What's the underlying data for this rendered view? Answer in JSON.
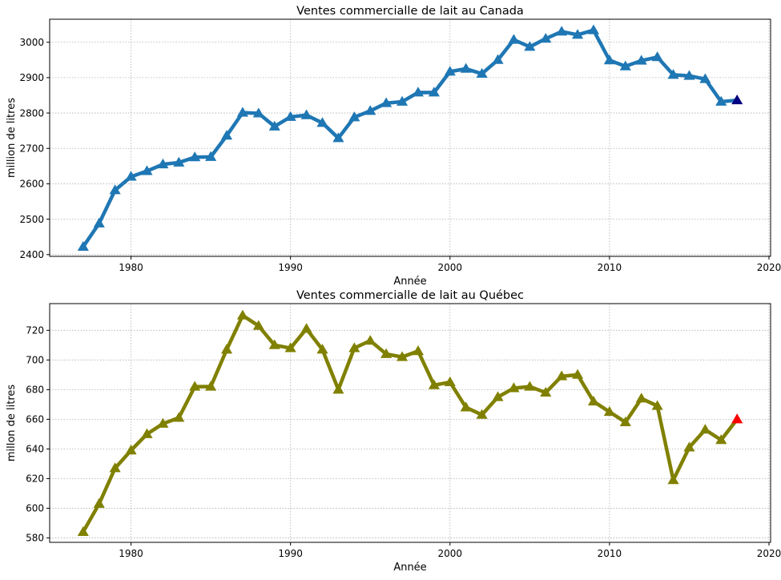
{
  "chart_data": [
    {
      "type": "line",
      "title": "Ventes commercialle de lait au Canada",
      "xlabel": "Année",
      "ylabel": "million de litres",
      "xlim": [
        1974.9,
        2020.1
      ],
      "ylim": [
        2395,
        3065
      ],
      "xticks": [
        1980,
        1990,
        2000,
        2010,
        2020
      ],
      "yticks": [
        2400,
        2500,
        2600,
        2700,
        2800,
        2900,
        3000
      ],
      "grid": true,
      "marker": "triangle",
      "line_color": "#1f77b4",
      "highlight_color": "#000080",
      "highlight_last": true,
      "x": [
        1977,
        1978,
        1979,
        1980,
        1981,
        1982,
        1983,
        1984,
        1985,
        1986,
        1987,
        1988,
        1989,
        1990,
        1991,
        1992,
        1993,
        1994,
        1995,
        1996,
        1997,
        1998,
        1999,
        2000,
        2001,
        2002,
        2003,
        2004,
        2005,
        2006,
        2007,
        2008,
        2009,
        2010,
        2011,
        2012,
        2013,
        2014,
        2015,
        2016,
        2017,
        2018
      ],
      "values": [
        2422,
        2488,
        2582,
        2620,
        2636,
        2655,
        2660,
        2675,
        2676,
        2736,
        2801,
        2799,
        2762,
        2789,
        2794,
        2772,
        2729,
        2788,
        2806,
        2828,
        2832,
        2858,
        2858,
        2917,
        2925,
        2911,
        2950,
        3007,
        2987,
        3010,
        3030,
        3021,
        3034,
        2949,
        2932,
        2948,
        2958,
        2908,
        2905,
        2896,
        2832,
        2836
      ]
    },
    {
      "type": "line",
      "title": "Ventes commercialle de lait au Québec",
      "xlabel": "Année",
      "ylabel": "millon de litres",
      "xlim": [
        1974.9,
        2020.1
      ],
      "ylim": [
        577,
        738
      ],
      "xticks": [
        1980,
        1990,
        2000,
        2010,
        2020
      ],
      "yticks": [
        580,
        600,
        620,
        640,
        660,
        680,
        700,
        720
      ],
      "grid": true,
      "marker": "triangle",
      "line_color": "#808000",
      "highlight_color": "#ff0000",
      "highlight_last": true,
      "x": [
        1977,
        1978,
        1979,
        1980,
        1981,
        1982,
        1983,
        1984,
        1985,
        1986,
        1987,
        1988,
        1989,
        1990,
        1991,
        1992,
        1993,
        1994,
        1995,
        1996,
        1997,
        1998,
        1999,
        2000,
        2001,
        2002,
        2003,
        2004,
        2005,
        2006,
        2007,
        2008,
        2009,
        2010,
        2011,
        2012,
        2013,
        2014,
        2015,
        2016,
        2017,
        2018
      ],
      "values": [
        584,
        603,
        627,
        639,
        650,
        657,
        661,
        682,
        682,
        707,
        730,
        723,
        710,
        708,
        721,
        707,
        680,
        708,
        713,
        704,
        702,
        706,
        683,
        685,
        668,
        663,
        675,
        681,
        682,
        678,
        689,
        690,
        672,
        665,
        658,
        674,
        669,
        619,
        641,
        653,
        646,
        660
      ]
    }
  ]
}
